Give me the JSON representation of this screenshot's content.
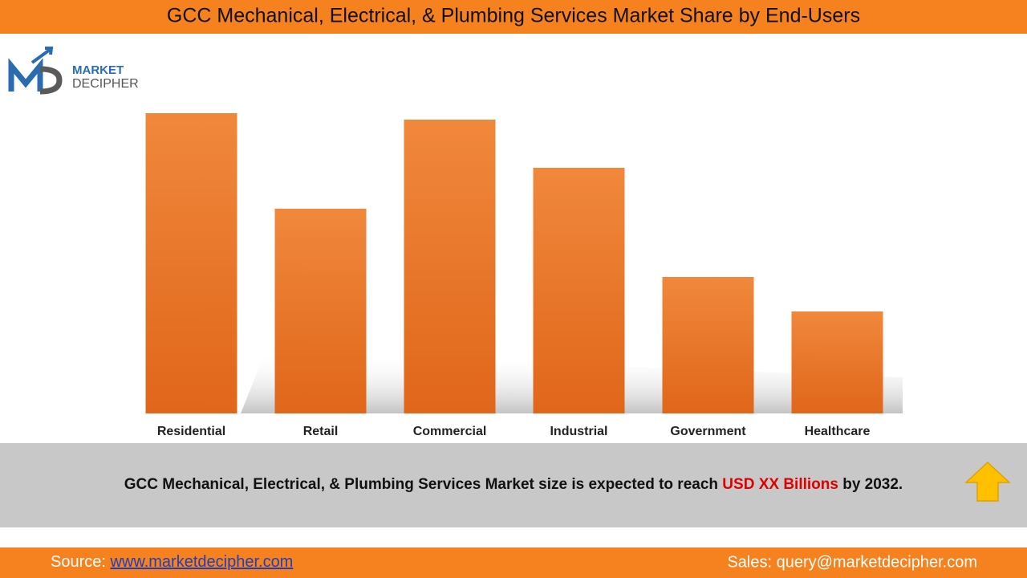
{
  "chart_data": {
    "type": "bar",
    "title": "GCC Mechanical, Electrical, & Plumbing Services Market Share by End-Users",
    "categories": [
      "Residential",
      "Retail",
      "Commercial",
      "Industrial",
      "Government",
      "Healthcare"
    ],
    "values": [
      374,
      255,
      366,
      306,
      170,
      127
    ],
    "color": "#e8742a"
  },
  "logo": {
    "line1": "MARKET",
    "line2": "DECIPHER"
  },
  "banner": {
    "text": "GCC Mechanical, Electrical, & Plumbing Services  Market size is expected to reach ",
    "highlight": "USD XX Billions",
    "end": " by 2032."
  },
  "footer": {
    "source_label": "Source: ",
    "source_link": "www.marketdecipher.com",
    "sales": "Sales: query@marketdecipher.com"
  }
}
